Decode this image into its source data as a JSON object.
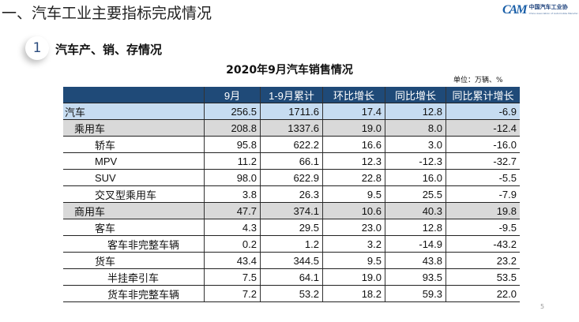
{
  "slide": {
    "title": "一、汽车工业主要指标完成情况",
    "section_number": "1",
    "section_title": "汽车产、销、存情况",
    "page_number": "5"
  },
  "logo": {
    "mark": "CAM",
    "name_cn": "中国汽车工业协",
    "name_en": "China Association of Automobile Manufac"
  },
  "table": {
    "caption": "2020年9月汽车销售情况",
    "unit": "单位：万辆、%",
    "headers": [
      "",
      "9月",
      "1-9月累计",
      "环比增长",
      "同比增长",
      "同比累计增长"
    ],
    "colors": {
      "header": "#1f4a78",
      "total_row": "#c6dcf1",
      "category_row": "#d9d9d9"
    },
    "rows": [
      {
        "label": "汽车",
        "indent": 0,
        "style": "blue",
        "values": [
          "256.5",
          "1711.6",
          "17.4",
          "12.8",
          "-6.9"
        ]
      },
      {
        "label": "乘用车",
        "indent": 1,
        "style": "gray",
        "values": [
          "208.8",
          "1337.6",
          "19.0",
          "8.0",
          "-12.4"
        ]
      },
      {
        "label": "轿车",
        "indent": 2,
        "style": "",
        "values": [
          "95.8",
          "622.2",
          "16.6",
          "3.0",
          "-16.0"
        ]
      },
      {
        "label": "MPV",
        "indent": 2,
        "style": "",
        "values": [
          "11.2",
          "66.1",
          "12.3",
          "-12.3",
          "-32.7"
        ]
      },
      {
        "label": "SUV",
        "indent": 2,
        "style": "",
        "values": [
          "98.0",
          "622.9",
          "22.8",
          "16.0",
          "-5.5"
        ]
      },
      {
        "label": "交叉型乘用车",
        "indent": 2,
        "style": "",
        "values": [
          "3.8",
          "26.3",
          "9.5",
          "25.5",
          "-7.9"
        ]
      },
      {
        "label": "商用车",
        "indent": 1,
        "style": "gray",
        "values": [
          "47.7",
          "374.1",
          "10.6",
          "40.3",
          "19.8"
        ]
      },
      {
        "label": "客车",
        "indent": 2,
        "style": "",
        "values": [
          "4.3",
          "29.5",
          "23.0",
          "12.8",
          "-9.5"
        ]
      },
      {
        "label": "客车非完整车辆",
        "indent": 3,
        "style": "",
        "values": [
          "0.2",
          "1.2",
          "3.2",
          "-14.9",
          "-43.2"
        ]
      },
      {
        "label": "货车",
        "indent": 2,
        "style": "",
        "values": [
          "43.4",
          "344.5",
          "9.5",
          "43.8",
          "23.2"
        ]
      },
      {
        "label": "半挂牵引车",
        "indent": 3,
        "style": "",
        "values": [
          "7.5",
          "64.1",
          "19.0",
          "93.5",
          "53.5"
        ]
      },
      {
        "label": "货车非完整车辆",
        "indent": 3,
        "style": "",
        "values": [
          "7.2",
          "53.2",
          "18.2",
          "59.3",
          "22.0"
        ]
      }
    ]
  }
}
